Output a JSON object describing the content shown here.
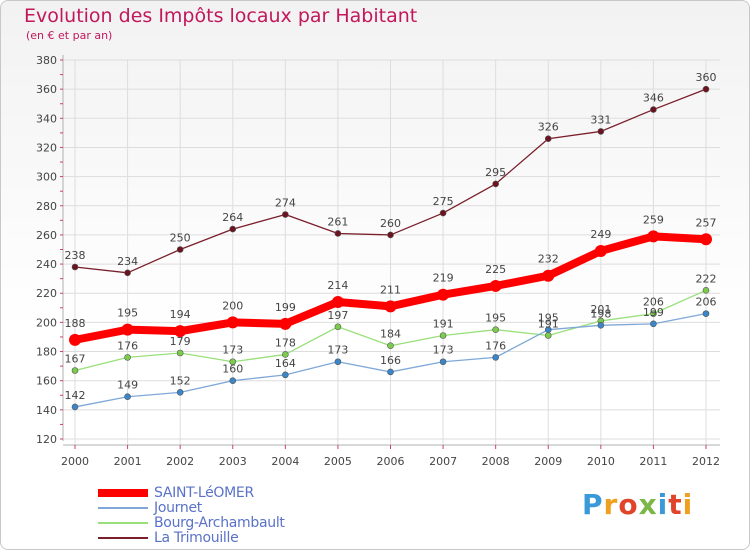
{
  "header": {
    "title": "Evolution des Impôts locaux par Habitant",
    "subtitle": "(en € et par an)"
  },
  "logo": {
    "text": "Proxiti",
    "colors": [
      "#3a9ad9",
      "#f0a020",
      "#e0452b",
      "#7ab648",
      "#3a9ad9",
      "#e0452b",
      "#f0a020"
    ]
  },
  "chart_data": {
    "type": "line",
    "title": "Evolution des Impôts locaux par Habitant",
    "subtitle": "(en € et par an)",
    "xlabel": "",
    "ylabel": "",
    "ylim": [
      120,
      380
    ],
    "yticks": [
      120,
      140,
      160,
      180,
      200,
      220,
      240,
      260,
      280,
      300,
      320,
      340,
      360,
      380
    ],
    "grid": true,
    "x": [
      "2000",
      "2001",
      "2002",
      "2003",
      "2004",
      "2005",
      "2006",
      "2007",
      "2008",
      "2009",
      "2010",
      "2011",
      "2012"
    ],
    "series": [
      {
        "name": "La Trimouille",
        "color": "#7a1f2b",
        "marker": "#6b1420",
        "values": [
          238,
          234,
          250,
          264,
          274,
          261,
          260,
          275,
          295,
          326,
          331,
          346,
          360
        ]
      },
      {
        "name": "Bourg-Archambault",
        "color": "#99e07a",
        "marker": "#7ccc4c",
        "values": [
          167,
          176,
          179,
          173,
          178,
          197,
          184,
          191,
          195,
          191,
          201,
          206,
          222
        ]
      },
      {
        "name": "Journet",
        "color": "#7fa8d8",
        "marker": "#3a86c8",
        "values": [
          142,
          149,
          152,
          160,
          164,
          173,
          166,
          173,
          176,
          195,
          198,
          199,
          206
        ]
      },
      {
        "name": "SAINT-LéOMER",
        "color": "#ff0000",
        "marker": "#ff0000",
        "values": [
          188,
          195,
          194,
          200,
          199,
          214,
          211,
          219,
          225,
          232,
          249,
          259,
          257
        ]
      }
    ],
    "legend": {
      "position": "bottom-left",
      "order": [
        "SAINT-LéOMER",
        "Journet",
        "Bourg-Archambault",
        "La Trimouille"
      ]
    }
  }
}
